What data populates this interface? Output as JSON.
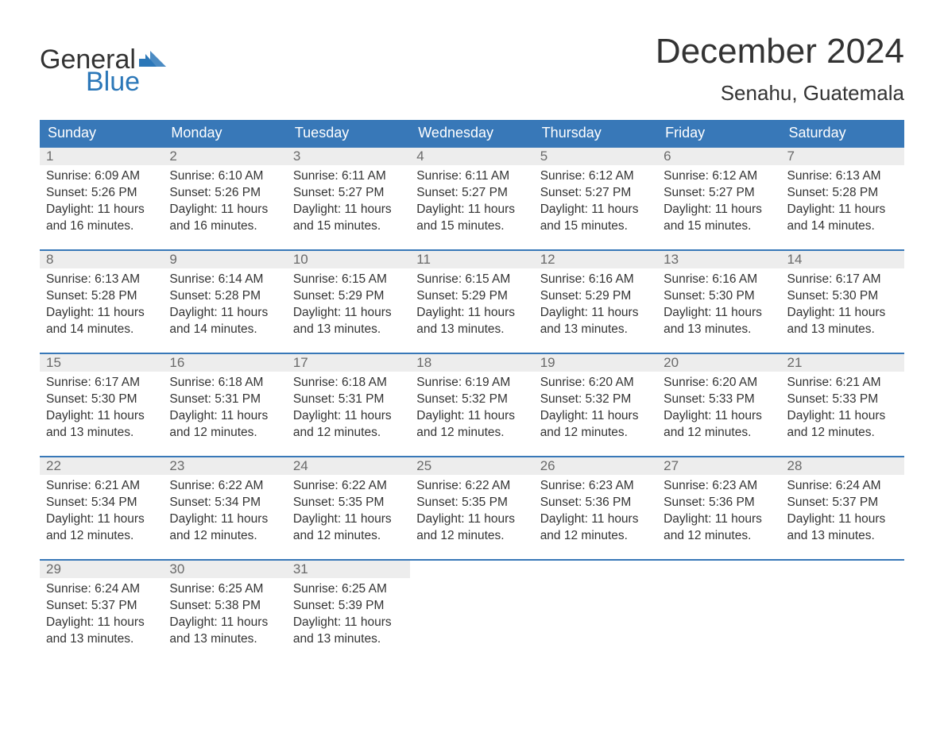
{
  "logo": {
    "text_general": "General",
    "text_blue": "Blue",
    "shape_color": "#2b77b8"
  },
  "title": "December 2024",
  "location": "Senahu, Guatemala",
  "colors": {
    "header_bg": "#3878b8",
    "header_text": "#ffffff",
    "daynum_bg": "#ededed",
    "daynum_text": "#6a6a6a",
    "body_text": "#333333",
    "week_border": "#3878b8",
    "page_bg": "#ffffff"
  },
  "typography": {
    "title_fontsize": 44,
    "location_fontsize": 26,
    "dow_fontsize": 18,
    "daynum_fontsize": 17,
    "body_fontsize": 15.5
  },
  "days_of_week": [
    "Sunday",
    "Monday",
    "Tuesday",
    "Wednesday",
    "Thursday",
    "Friday",
    "Saturday"
  ],
  "weeks": [
    [
      {
        "n": "1",
        "sunrise": "Sunrise: 6:09 AM",
        "sunset": "Sunset: 5:26 PM",
        "daylight": "Daylight: 11 hours and 16 minutes."
      },
      {
        "n": "2",
        "sunrise": "Sunrise: 6:10 AM",
        "sunset": "Sunset: 5:26 PM",
        "daylight": "Daylight: 11 hours and 16 minutes."
      },
      {
        "n": "3",
        "sunrise": "Sunrise: 6:11 AM",
        "sunset": "Sunset: 5:27 PM",
        "daylight": "Daylight: 11 hours and 15 minutes."
      },
      {
        "n": "4",
        "sunrise": "Sunrise: 6:11 AM",
        "sunset": "Sunset: 5:27 PM",
        "daylight": "Daylight: 11 hours and 15 minutes."
      },
      {
        "n": "5",
        "sunrise": "Sunrise: 6:12 AM",
        "sunset": "Sunset: 5:27 PM",
        "daylight": "Daylight: 11 hours and 15 minutes."
      },
      {
        "n": "6",
        "sunrise": "Sunrise: 6:12 AM",
        "sunset": "Sunset: 5:27 PM",
        "daylight": "Daylight: 11 hours and 15 minutes."
      },
      {
        "n": "7",
        "sunrise": "Sunrise: 6:13 AM",
        "sunset": "Sunset: 5:28 PM",
        "daylight": "Daylight: 11 hours and 14 minutes."
      }
    ],
    [
      {
        "n": "8",
        "sunrise": "Sunrise: 6:13 AM",
        "sunset": "Sunset: 5:28 PM",
        "daylight": "Daylight: 11 hours and 14 minutes."
      },
      {
        "n": "9",
        "sunrise": "Sunrise: 6:14 AM",
        "sunset": "Sunset: 5:28 PM",
        "daylight": "Daylight: 11 hours and 14 minutes."
      },
      {
        "n": "10",
        "sunrise": "Sunrise: 6:15 AM",
        "sunset": "Sunset: 5:29 PM",
        "daylight": "Daylight: 11 hours and 13 minutes."
      },
      {
        "n": "11",
        "sunrise": "Sunrise: 6:15 AM",
        "sunset": "Sunset: 5:29 PM",
        "daylight": "Daylight: 11 hours and 13 minutes."
      },
      {
        "n": "12",
        "sunrise": "Sunrise: 6:16 AM",
        "sunset": "Sunset: 5:29 PM",
        "daylight": "Daylight: 11 hours and 13 minutes."
      },
      {
        "n": "13",
        "sunrise": "Sunrise: 6:16 AM",
        "sunset": "Sunset: 5:30 PM",
        "daylight": "Daylight: 11 hours and 13 minutes."
      },
      {
        "n": "14",
        "sunrise": "Sunrise: 6:17 AM",
        "sunset": "Sunset: 5:30 PM",
        "daylight": "Daylight: 11 hours and 13 minutes."
      }
    ],
    [
      {
        "n": "15",
        "sunrise": "Sunrise: 6:17 AM",
        "sunset": "Sunset: 5:30 PM",
        "daylight": "Daylight: 11 hours and 13 minutes."
      },
      {
        "n": "16",
        "sunrise": "Sunrise: 6:18 AM",
        "sunset": "Sunset: 5:31 PM",
        "daylight": "Daylight: 11 hours and 12 minutes."
      },
      {
        "n": "17",
        "sunrise": "Sunrise: 6:18 AM",
        "sunset": "Sunset: 5:31 PM",
        "daylight": "Daylight: 11 hours and 12 minutes."
      },
      {
        "n": "18",
        "sunrise": "Sunrise: 6:19 AM",
        "sunset": "Sunset: 5:32 PM",
        "daylight": "Daylight: 11 hours and 12 minutes."
      },
      {
        "n": "19",
        "sunrise": "Sunrise: 6:20 AM",
        "sunset": "Sunset: 5:32 PM",
        "daylight": "Daylight: 11 hours and 12 minutes."
      },
      {
        "n": "20",
        "sunrise": "Sunrise: 6:20 AM",
        "sunset": "Sunset: 5:33 PM",
        "daylight": "Daylight: 11 hours and 12 minutes."
      },
      {
        "n": "21",
        "sunrise": "Sunrise: 6:21 AM",
        "sunset": "Sunset: 5:33 PM",
        "daylight": "Daylight: 11 hours and 12 minutes."
      }
    ],
    [
      {
        "n": "22",
        "sunrise": "Sunrise: 6:21 AM",
        "sunset": "Sunset: 5:34 PM",
        "daylight": "Daylight: 11 hours and 12 minutes."
      },
      {
        "n": "23",
        "sunrise": "Sunrise: 6:22 AM",
        "sunset": "Sunset: 5:34 PM",
        "daylight": "Daylight: 11 hours and 12 minutes."
      },
      {
        "n": "24",
        "sunrise": "Sunrise: 6:22 AM",
        "sunset": "Sunset: 5:35 PM",
        "daylight": "Daylight: 11 hours and 12 minutes."
      },
      {
        "n": "25",
        "sunrise": "Sunrise: 6:22 AM",
        "sunset": "Sunset: 5:35 PM",
        "daylight": "Daylight: 11 hours and 12 minutes."
      },
      {
        "n": "26",
        "sunrise": "Sunrise: 6:23 AM",
        "sunset": "Sunset: 5:36 PM",
        "daylight": "Daylight: 11 hours and 12 minutes."
      },
      {
        "n": "27",
        "sunrise": "Sunrise: 6:23 AM",
        "sunset": "Sunset: 5:36 PM",
        "daylight": "Daylight: 11 hours and 12 minutes."
      },
      {
        "n": "28",
        "sunrise": "Sunrise: 6:24 AM",
        "sunset": "Sunset: 5:37 PM",
        "daylight": "Daylight: 11 hours and 13 minutes."
      }
    ],
    [
      {
        "n": "29",
        "sunrise": "Sunrise: 6:24 AM",
        "sunset": "Sunset: 5:37 PM",
        "daylight": "Daylight: 11 hours and 13 minutes."
      },
      {
        "n": "30",
        "sunrise": "Sunrise: 6:25 AM",
        "sunset": "Sunset: 5:38 PM",
        "daylight": "Daylight: 11 hours and 13 minutes."
      },
      {
        "n": "31",
        "sunrise": "Sunrise: 6:25 AM",
        "sunset": "Sunset: 5:39 PM",
        "daylight": "Daylight: 11 hours and 13 minutes."
      },
      null,
      null,
      null,
      null
    ]
  ]
}
